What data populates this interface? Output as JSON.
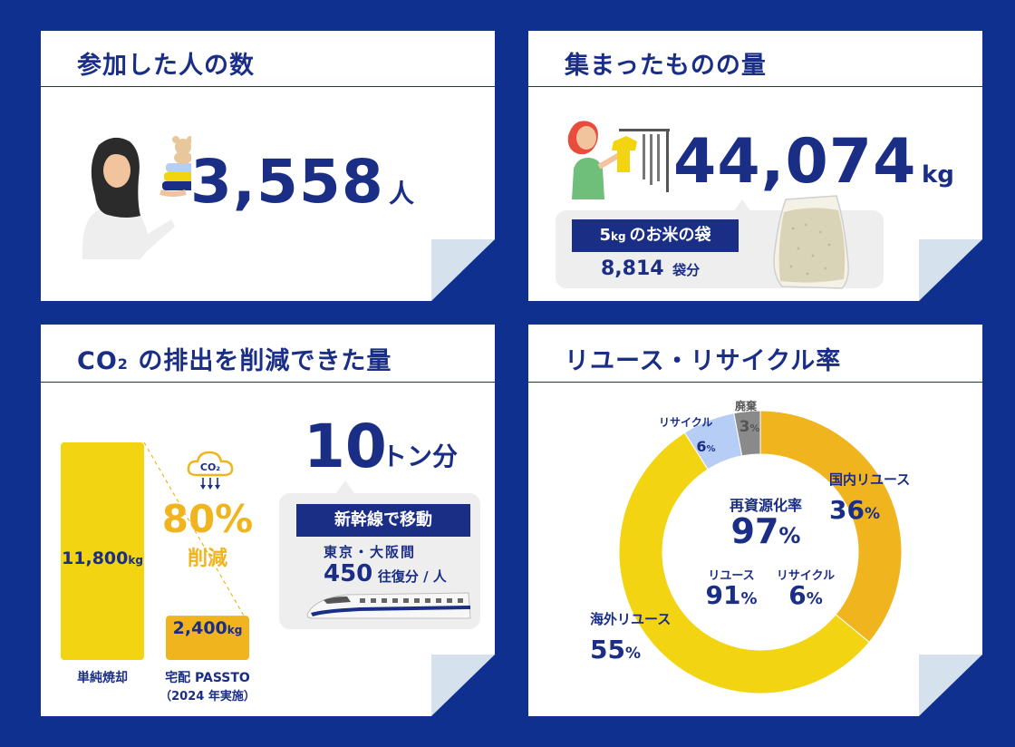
{
  "participants": {
    "title": "参加した人の数",
    "count": "3,558",
    "unit": "人"
  },
  "collected": {
    "title": "集まったものの量",
    "amount": "44,074",
    "unit": "kg",
    "rice_tag_num": "5",
    "rice_tag_unit": "kg",
    "rice_tag_text": "のお米の袋",
    "rice_bags": "8,814",
    "rice_bags_unit": "袋分"
  },
  "co2": {
    "title_prefix": "CO",
    "title_sub": "2",
    "title_rest": " の排出を削減できた量",
    "cloud_label": "CO₂",
    "reduction_pct": "80%",
    "reduction_label": "削減",
    "tons": "10",
    "tons_unit": "トン分",
    "train_tag": "新幹線で移動",
    "route": "東京・大阪間",
    "trips": "450",
    "trips_unit": "往復分 / 人"
  },
  "rates": {
    "title": "リユース・リサイクル率",
    "center_label": "再資源化率",
    "center_value": "97",
    "pct": "%",
    "sub_reuse_label": "リユース",
    "sub_reuse_value": "91",
    "sub_recycle_label": "リサイクル",
    "sub_recycle_value": "6"
  },
  "chart_data": [
    {
      "type": "bar",
      "categories": [
        "単純焼却",
        "宅配 PASSTO"
      ],
      "category_sublabels": [
        "",
        "（2024 年実施）"
      ],
      "values": [
        11800,
        2400
      ],
      "value_labels": [
        "11,800",
        "2,400"
      ],
      "unit": "kg",
      "colors": [
        "#f2d413",
        "#f0b41e"
      ]
    },
    {
      "type": "pie",
      "slices": [
        {
          "label": "国内リユース",
          "value": 36,
          "color": "#f0b41e"
        },
        {
          "label": "海外リユース",
          "value": 55,
          "color": "#f2d413"
        },
        {
          "label": "リサイクル",
          "value": 6,
          "color": "#b6cdf6"
        },
        {
          "label": "廃棄",
          "value": 3,
          "color": "#8a8a8a"
        }
      ]
    }
  ]
}
